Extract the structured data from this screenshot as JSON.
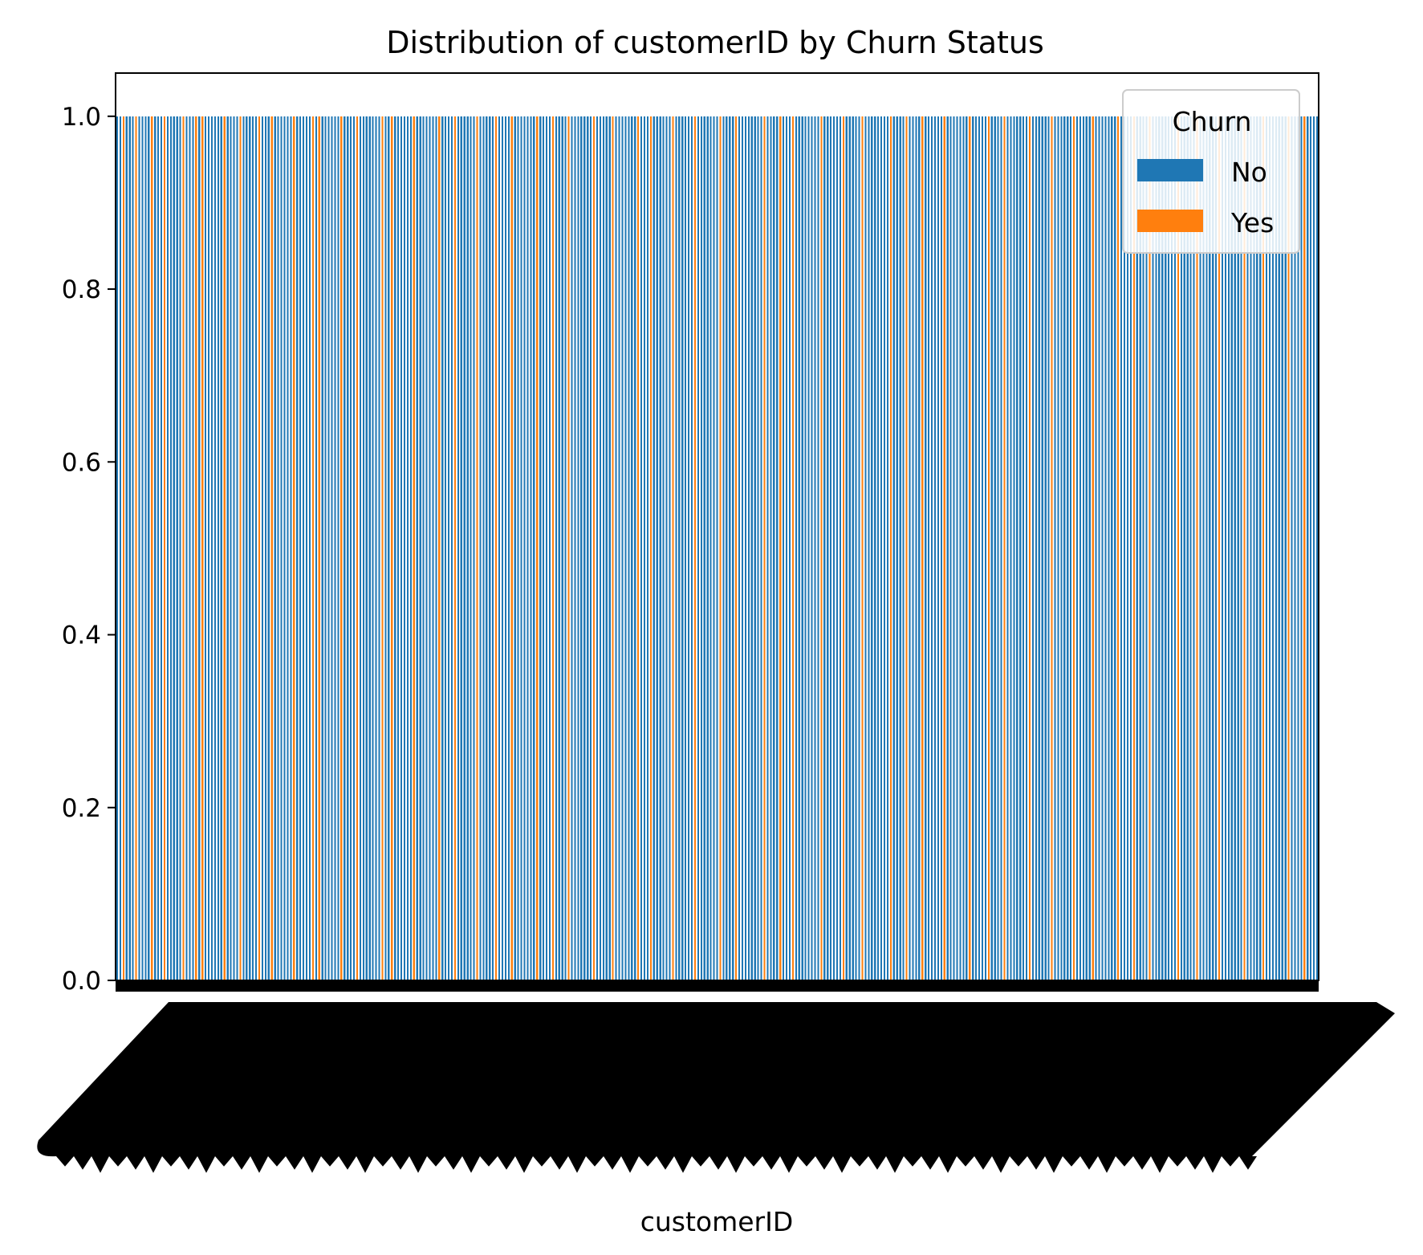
{
  "chart_data": {
    "type": "bar",
    "title": "Distribution of customerID by Churn Status",
    "xlabel": "customerID",
    "ylabel": "",
    "ylim": [
      0,
      1.05
    ],
    "yticks": [
      "0.0",
      "0.2",
      "0.4",
      "0.6",
      "0.8",
      "1.0"
    ],
    "ytick_values": [
      0,
      0.2,
      0.4,
      0.6,
      0.8,
      1.0
    ],
    "legend": {
      "title": "Churn",
      "placement": "top-right",
      "entries": [
        {
          "label": "No",
          "color": "#1f77b4"
        },
        {
          "label": "Yes",
          "color": "#ff7f0e"
        }
      ]
    },
    "bar_value": 1.0,
    "category_pattern": "NNYNNNYNNNNYNNNYNNNNNYNNNYNYNNNNNNYNNNNYNNNNNYNNNYNNNNNNYNNNNNYNYNNNNNNYNNNNYNNNNNNNYNNYNNNNNNYNNNNNNNYNNNNYNNNNNNYNNNNNYNNNNYNNNNNNNYNNNNYNNNNYNNNNNNNYNNNNNYNNNNNNNYNNNYNNNNNNYNNNNNNYNNNNNNNYNNNNYNNNNNNNNYNNNNYNNNYNNNNNNNNYNNNNNNYNNNNNYNNNNNNNNYNNNNYNNNNYNNNNNNYNNNNNNNYNNNNNYNNNNYNNNNNNNYNNNNNNYNNNNNNYNNNNNYNNNNNNNYNNNNYNNNNYNNNNNNNNYNNNNNYNNNNNNYNNNNNNNYNNNNNYNNNNNNNYNNNNYNNNN",
    "series": [
      {
        "name": "No",
        "color": "#1f77b4"
      },
      {
        "name": "Yes",
        "color": "#ff7f0e"
      }
    ]
  }
}
